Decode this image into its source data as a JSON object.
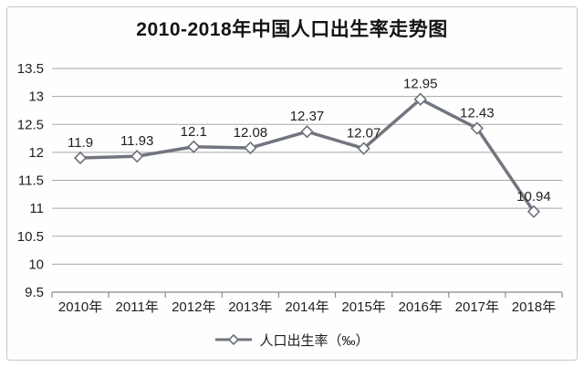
{
  "title": "2010-2018年中国人口出生率走势图",
  "legend": {
    "label": "人口出生率（‰）",
    "marker_icon": "line-diamond-icon"
  },
  "colors": {
    "line": "#71757f",
    "marker_fill": "#ffffff",
    "marker_stroke": "#6d717b",
    "grid": "#a8a8a8",
    "axis": "#8c8c8c",
    "text": "#1f1f1f",
    "frame_border": "#c6c6c6",
    "background": "#fefefe"
  },
  "chart_data": {
    "type": "line",
    "title": "2010-2018年中国人口出生率走势图",
    "categories": [
      "2010年",
      "2011年",
      "2012年",
      "2013年",
      "2014年",
      "2015年",
      "2016年",
      "2017年",
      "2018年"
    ],
    "series": [
      {
        "name": "人口出生率（‰）",
        "values": [
          11.9,
          11.93,
          12.1,
          12.08,
          12.37,
          12.07,
          12.95,
          12.43,
          10.94
        ],
        "labels": [
          "11.9",
          "11.93",
          "12.1",
          "12.08",
          "12.37",
          "12.07",
          "12.95",
          "12.43",
          "10.94"
        ]
      }
    ],
    "xlabel": "",
    "ylabel": "",
    "ylim": [
      9.5,
      13.5
    ],
    "ytick_step": 0.5,
    "yticks": [
      "13.5",
      "13",
      "12.5",
      "12",
      "11.5",
      "11",
      "10.5",
      "10",
      "9.5"
    ],
    "grid": true,
    "marker": "diamond",
    "legend_position": "bottom"
  }
}
